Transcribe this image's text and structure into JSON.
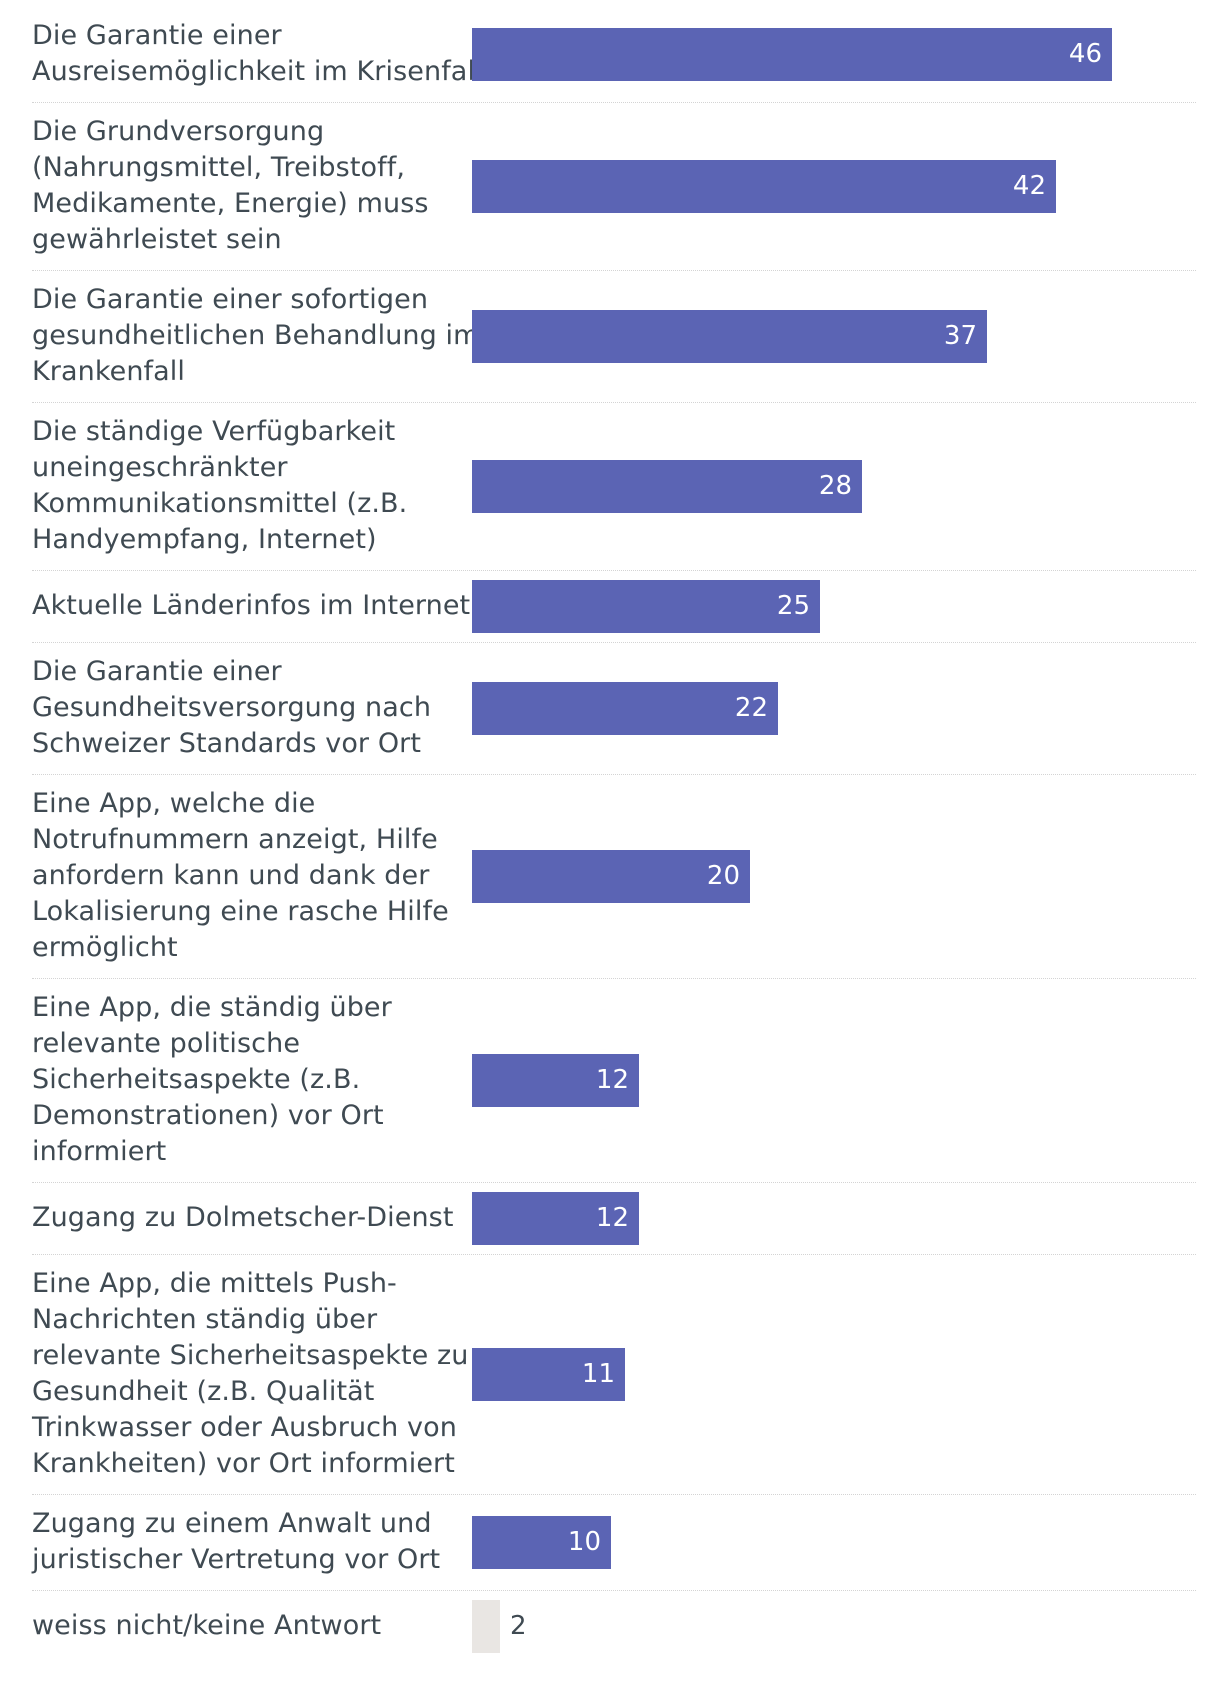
{
  "chart_data": {
    "type": "bar",
    "orientation": "horizontal",
    "title": "",
    "xlabel": "",
    "ylabel": "",
    "xlim": [
      0,
      46
    ],
    "grid": false,
    "categories": [
      "Die Garantie einer\nAusreisemöglichkeit im Krisenfall",
      "Die Grundversorgung\n(Nahrungsmittel, Treibstoff,\nMedikamente, Energie) muss\ngewährleistet sein",
      "Die Garantie einer sofortigen\ngesundheitlichen Behandlung im\nKrankenfall",
      "Die ständige Verfügbarkeit\nuneingeschränkter\nKommunikationsmittel (z.B.\nHandyempfang, Internet)",
      "Aktuelle Länderinfos im Internet",
      "Die Garantie einer\nGesundheitsversorgung nach\nSchweizer Standards vor Ort",
      "Eine App, welche die\nNotrufnummern anzeigt, Hilfe\nanfordern kann und dank der\nLokalisierung eine rasche Hilfe\nermöglicht",
      "Eine App, die ständig über\nrelevante politische\nSicherheitsaspekte (z.B.\nDemonstrationen) vor Ort\ninformiert",
      "Zugang zu Dolmetscher-Dienst",
      "Eine App, die mittels Push-\nNachrichten ständig über\nrelevante Sicherheitsaspekte zu\nGesundheit (z.B. Qualität\nTrinkwasser oder Ausbruch von\nKrankheiten) vor Ort informiert",
      "Zugang zu einem Anwalt und\njuristischer Vertretung vor Ort",
      "weiss nicht/keine Antwort"
    ],
    "values": [
      46,
      42,
      37,
      28,
      25,
      22,
      20,
      12,
      12,
      11,
      10,
      2
    ],
    "colors": {
      "bar": "#5b64b4",
      "muted_bar": "#e9e6e3",
      "text": "#3f4a52"
    }
  }
}
